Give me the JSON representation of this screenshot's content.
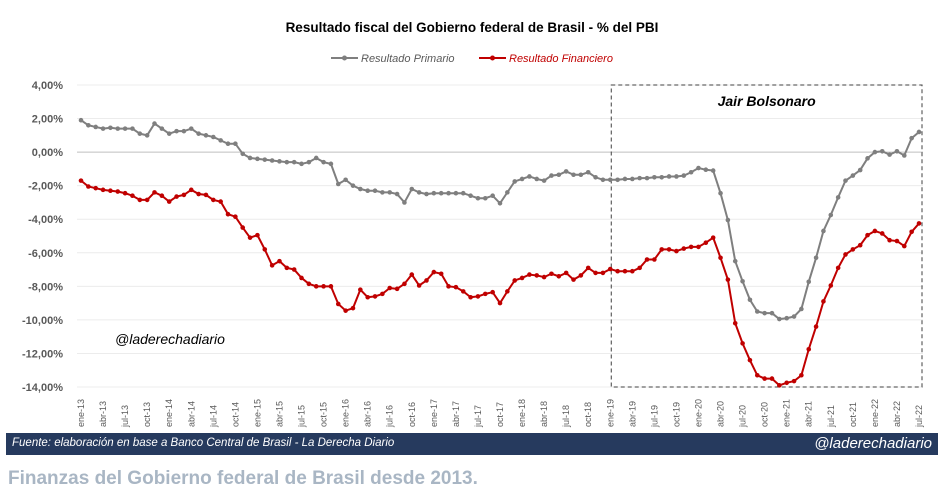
{
  "chart_data": {
    "type": "line",
    "title": "Resultado fiscal del Gobierno federal de Brasil - % del PBI",
    "xlabel": "",
    "ylabel": "",
    "ylim": [
      -14,
      4
    ],
    "yticks": [
      "4,00%",
      "2,00%",
      "0,00%",
      "-2,00%",
      "-4,00%",
      "-6,00%",
      "-8,00%",
      "-10,00%",
      "-12,00%",
      "-14,00%"
    ],
    "ytick_values": [
      4,
      2,
      0,
      -2,
      -4,
      -6,
      -8,
      -10,
      -12,
      -14
    ],
    "xtick_labels": [
      "ene-13",
      "abr-13",
      "jul-13",
      "oct-13",
      "ene-14",
      "abr-14",
      "jul-14",
      "oct-14",
      "ene-15",
      "abr-15",
      "jul-15",
      "oct-15",
      "ene-16",
      "abr-16",
      "jul-16",
      "oct-16",
      "ene-17",
      "abr-17",
      "jul-17",
      "oct-17",
      "ene-18",
      "abr-18",
      "jul-18",
      "oct-18",
      "ene-19",
      "abr-19",
      "jul-19",
      "oct-19",
      "ene-20",
      "abr-20",
      "jul-20",
      "oct-20",
      "ene-21",
      "abr-21",
      "jul-21",
      "oct-21",
      "ene-22",
      "abr-22",
      "jul-22"
    ],
    "x_start": "ene-13",
    "x_end": "jul-22",
    "grid": true,
    "legend_position": "top-center",
    "series": [
      {
        "name": "Resultado Primario",
        "color": "#7f7f7f",
        "values": [
          1.9,
          1.6,
          1.5,
          1.4,
          1.45,
          1.4,
          1.4,
          1.4,
          1.1,
          1.0,
          1.7,
          1.4,
          1.1,
          1.25,
          1.25,
          1.4,
          1.1,
          1.0,
          0.9,
          0.7,
          0.5,
          0.5,
          -0.1,
          -0.35,
          -0.4,
          -0.45,
          -0.5,
          -0.55,
          -0.6,
          -0.6,
          -0.7,
          -0.6,
          -0.35,
          -0.6,
          -0.7,
          -1.9,
          -1.65,
          -2.0,
          -2.2,
          -2.3,
          -2.3,
          -2.4,
          -2.4,
          -2.5,
          -3.0,
          -2.2,
          -2.4,
          -2.5,
          -2.45,
          -2.45,
          -2.45,
          -2.45,
          -2.45,
          -2.6,
          -2.75,
          -2.75,
          -2.6,
          -3.05,
          -2.4,
          -1.75,
          -1.6,
          -1.45,
          -1.6,
          -1.7,
          -1.4,
          -1.35,
          -1.15,
          -1.35,
          -1.35,
          -1.2,
          -1.5,
          -1.65,
          -1.65,
          -1.65,
          -1.6,
          -1.6,
          -1.55,
          -1.55,
          -1.5,
          -1.5,
          -1.45,
          -1.45,
          -1.4,
          -1.2,
          -0.95,
          -1.05,
          -1.1,
          -2.45,
          -4.05,
          -6.5,
          -7.7,
          -8.8,
          -9.5,
          -9.6,
          -9.6,
          -9.95,
          -9.9,
          -9.8,
          -9.35,
          -7.73,
          -6.3,
          -4.7,
          -3.75,
          -2.7,
          -1.7,
          -1.4,
          -1.07,
          -0.37,
          0.0,
          0.05,
          -0.15,
          0.05,
          -0.2,
          0.83,
          1.2
        ]
      },
      {
        "name": "Resultado Financiero",
        "color": "#c00000",
        "values": [
          -1.7,
          -2.05,
          -2.15,
          -2.25,
          -2.3,
          -2.35,
          -2.45,
          -2.6,
          -2.85,
          -2.85,
          -2.4,
          -2.6,
          -2.95,
          -2.65,
          -2.55,
          -2.25,
          -2.5,
          -2.55,
          -2.85,
          -2.95,
          -3.7,
          -3.85,
          -4.5,
          -5.1,
          -4.95,
          -5.8,
          -6.75,
          -6.5,
          -6.9,
          -7.0,
          -7.5,
          -7.85,
          -8.0,
          -8.0,
          -8.0,
          -9.05,
          -9.45,
          -9.3,
          -8.2,
          -8.65,
          -8.6,
          -8.45,
          -8.1,
          -8.15,
          -7.85,
          -7.3,
          -7.95,
          -7.65,
          -7.15,
          -7.25,
          -8.0,
          -8.05,
          -8.3,
          -8.65,
          -8.6,
          -8.45,
          -8.35,
          -9.0,
          -8.3,
          -7.65,
          -7.5,
          -7.3,
          -7.35,
          -7.45,
          -7.25,
          -7.4,
          -7.2,
          -7.6,
          -7.35,
          -6.9,
          -7.2,
          -7.2,
          -6.97,
          -7.1,
          -7.1,
          -7.1,
          -6.9,
          -6.4,
          -6.4,
          -5.8,
          -5.8,
          -5.9,
          -5.75,
          -5.65,
          -5.65,
          -5.4,
          -5.1,
          -6.3,
          -7.6,
          -10.2,
          -11.4,
          -12.4,
          -13.3,
          -13.5,
          -13.5,
          -13.9,
          -13.75,
          -13.65,
          -13.3,
          -11.75,
          -10.4,
          -8.9,
          -7.95,
          -6.9,
          -6.1,
          -5.8,
          -5.55,
          -4.95,
          -4.7,
          -4.85,
          -5.25,
          -5.3,
          -5.6,
          -4.75,
          -4.25
        ]
      }
    ],
    "annotations": {
      "period_box_label": "Jair Bolsonaro",
      "period_box_start": "ene-19",
      "period_box_end": "jul-22",
      "watermark": "@laderechadiario"
    }
  },
  "footer": {
    "source": "Fuente: elaboración en base a Banco Central de Brasil - La Derecha Diario",
    "handle": "@laderechadiario"
  },
  "caption": "Finanzas del Gobierno federal de Brasil desde 2013."
}
